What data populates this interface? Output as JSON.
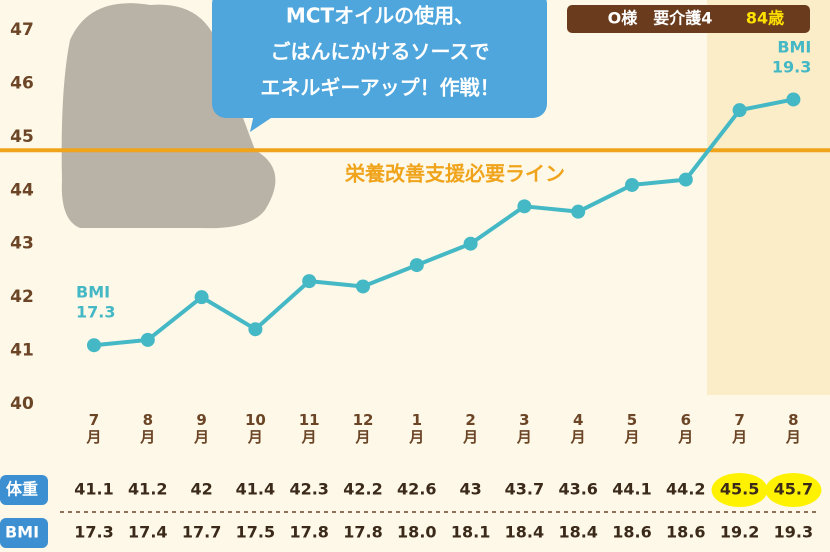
{
  "chart_data": {
    "type": "line",
    "categories": [
      "7月",
      "8月",
      "9月",
      "10月",
      "11月",
      "12月",
      "1月",
      "2月",
      "3月",
      "4月",
      "5月",
      "6月",
      "7月",
      "8月"
    ],
    "series": [
      {
        "name": "体重",
        "color": "#45b8c5",
        "values": [
          41.1,
          41.2,
          42,
          41.4,
          42.3,
          42.2,
          42.6,
          43,
          43.7,
          43.6,
          44.1,
          44.2,
          45.5,
          45.7
        ]
      }
    ],
    "ylim": [
      40,
      47
    ],
    "yticks": [
      40,
      41,
      42,
      43,
      44,
      45,
      46,
      47
    ],
    "threshold": {
      "value": 44.75,
      "label": "栄養改善支援必要ライン",
      "color": "#f0a41c"
    },
    "annotations": [
      {
        "label": "BMI",
        "value": "17.3"
      },
      {
        "label": "BMI",
        "value": "19.3"
      }
    ],
    "bubble": [
      "MCTオイルの使用、",
      "ごはんにかけるソースで",
      "エネルギーアップ！作戦！"
    ],
    "tag": {
      "name": "O様　要介護4",
      "age": "84歳"
    },
    "table": {
      "rows": [
        {
          "label": "体重"
        },
        {
          "label": "BMI",
          "values": [
            "17.3",
            "17.4",
            "17.7",
            "17.5",
            "17.8",
            "17.8",
            "18.0",
            "18.1",
            "18.4",
            "18.4",
            "18.6",
            "18.6",
            "19.2",
            "19.3"
          ]
        }
      ]
    }
  }
}
